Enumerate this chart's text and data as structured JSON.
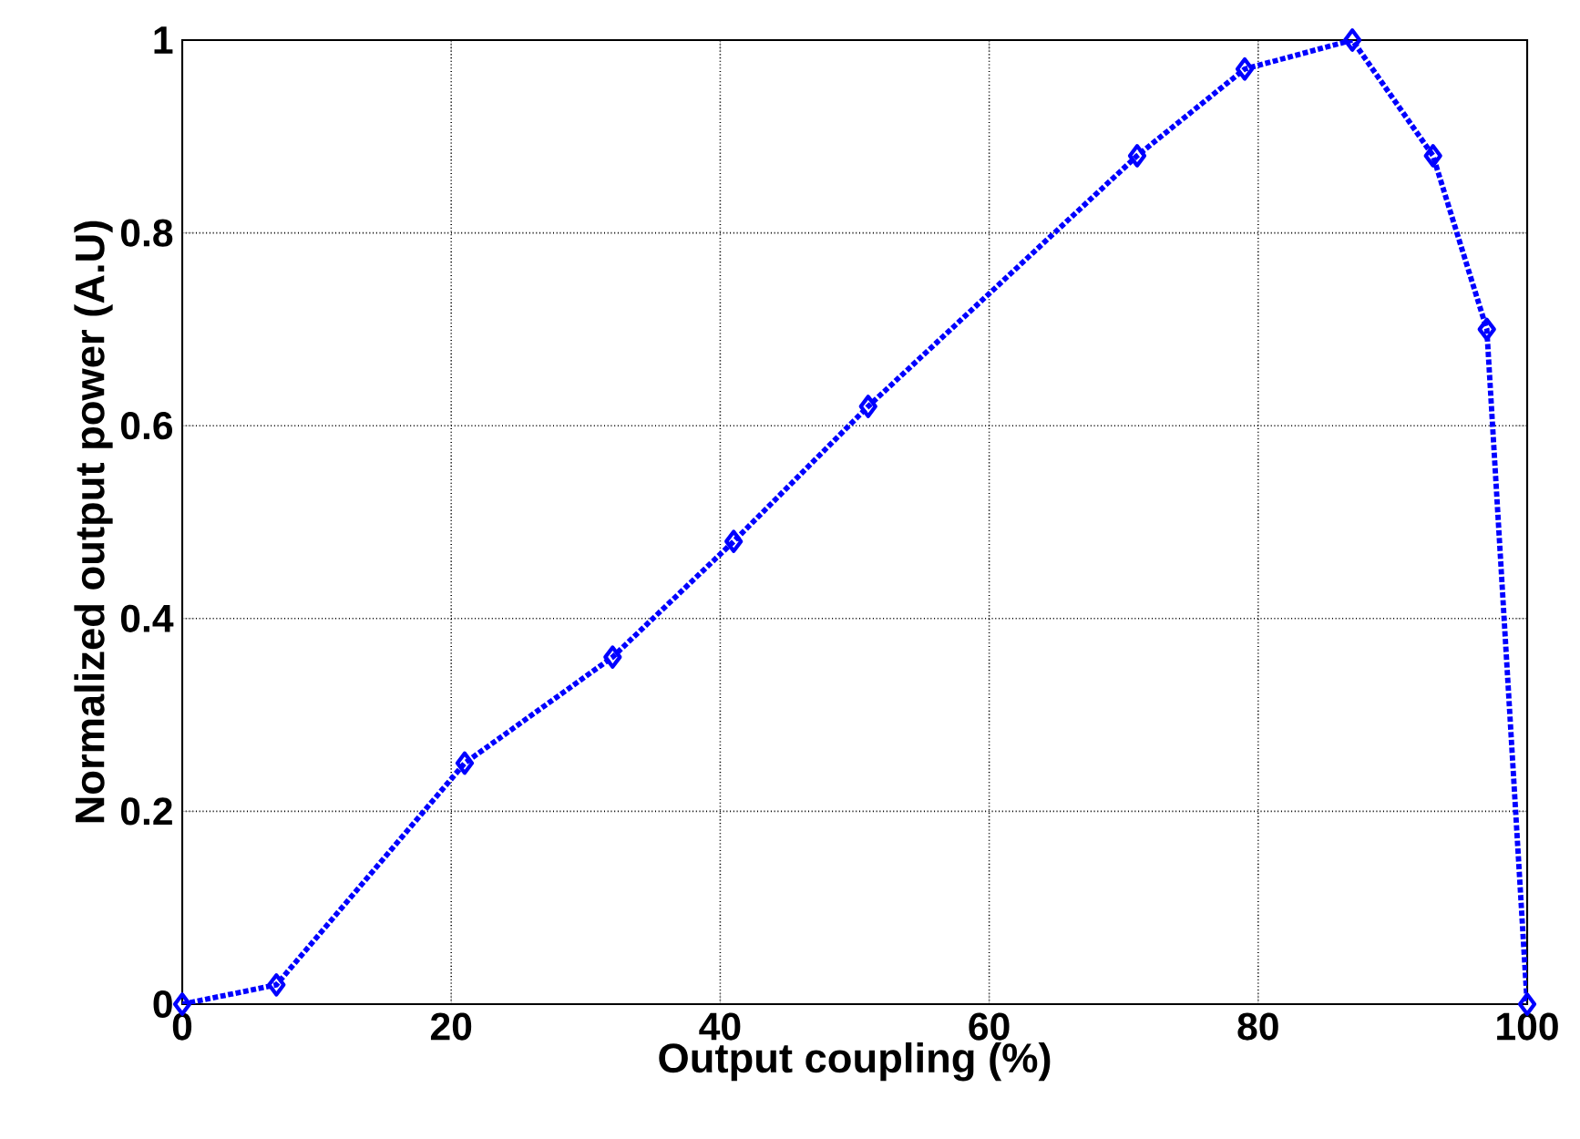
{
  "chart_data": {
    "type": "line",
    "xlabel": "Output coupling (%)",
    "ylabel": "Normalized output power (A.U)",
    "x": [
      0,
      7,
      21,
      32,
      41,
      51,
      71,
      79,
      87,
      93,
      97,
      100
    ],
    "series": [
      {
        "color": "#0000ff",
        "values": [
          0,
          0.02,
          0.25,
          0.36,
          0.48,
          0.62,
          0.88,
          0.97,
          1,
          0.88,
          0.7,
          0
        ]
      }
    ],
    "xlim": [
      0,
      100
    ],
    "ylim": [
      0,
      1
    ],
    "xticks": [
      0,
      20,
      40,
      60,
      80,
      100
    ],
    "yticks": [
      0,
      0.2,
      0.4,
      0.6,
      0.8,
      1
    ],
    "grid": true,
    "marker": "diamond",
    "line_style": "dotted"
  }
}
